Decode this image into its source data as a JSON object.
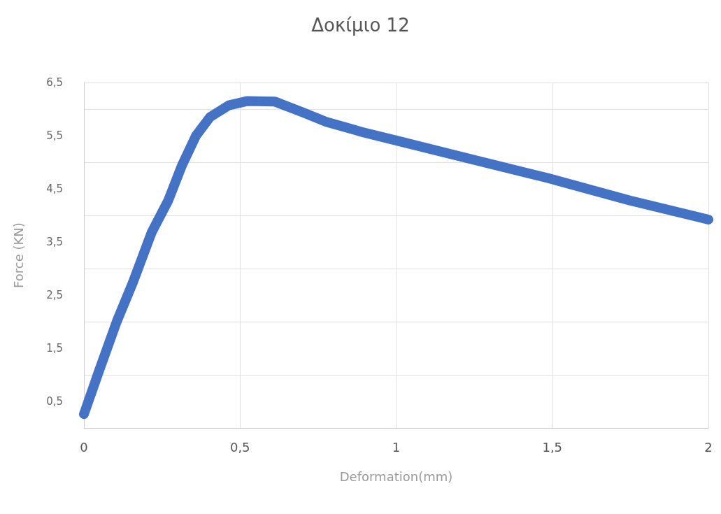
{
  "chart_data": {
    "type": "line",
    "title": "Δοκίμιο 12",
    "xlabel": "Deformation(mm)",
    "ylabel": "Force (KN)",
    "xlim": [
      0,
      2
    ],
    "xticks": [
      0,
      {
        "value": 0.5,
        "label": "0,5"
      },
      1,
      {
        "value": 1.5,
        "label": "1,5"
      },
      2
    ],
    "ylim": [
      0,
      6.5
    ],
    "yticks": [
      {
        "value": 0.5,
        "label": "0,5"
      },
      {
        "value": 1.5,
        "label": "1,5"
      },
      {
        "value": 2.5,
        "label": "2,5"
      },
      {
        "value": 3.5,
        "label": "3,5"
      },
      {
        "value": 4.5,
        "label": "4,5"
      },
      {
        "value": 5.5,
        "label": "5,5"
      },
      {
        "value": 6.5,
        "label": "6,5"
      }
    ],
    "grid": true,
    "line_style": "solid",
    "series": [
      {
        "color": "#4472c4",
        "x": [
          0,
          0.05,
          0.105,
          0.157,
          0.217,
          0.27,
          0.314,
          0.359,
          0.404,
          0.464,
          0.522,
          0.612,
          0.7,
          0.776,
          0.89,
          1.0,
          1.226,
          1.487,
          1.749,
          1.973,
          2
        ],
        "values": [
          0.26,
          1.1,
          2.0,
          2.74,
          3.68,
          4.28,
          4.94,
          5.5,
          5.85,
          6.07,
          6.15,
          6.14,
          5.94,
          5.76,
          5.57,
          5.41,
          5.08,
          4.7,
          4.28,
          3.96,
          3.92
        ]
      }
    ]
  }
}
